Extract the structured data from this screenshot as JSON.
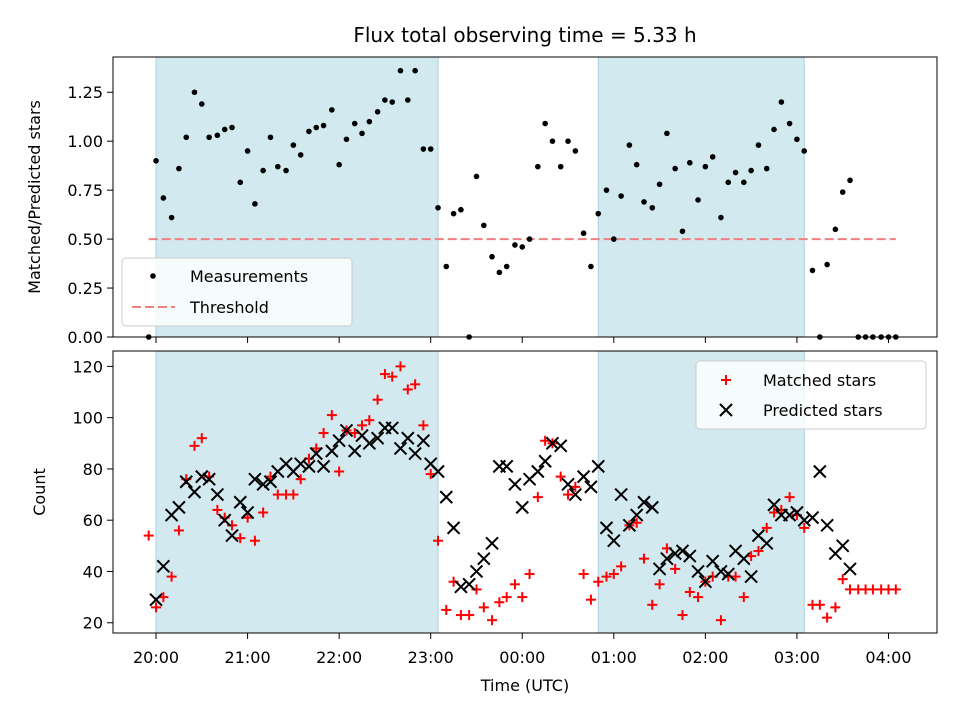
{
  "chart_data": [
    {
      "type": "scatter",
      "title": "Flux total observing time = 5.33 h",
      "xlabel": "",
      "ylabel": "Matched/Predicted stars",
      "ylim": [
        0,
        1.43
      ],
      "yticks": [
        "0.00",
        "0.25",
        "0.50",
        "0.75",
        "1.00",
        "1.25"
      ],
      "xlim_hours": [
        19.53,
        28.53
      ],
      "shaded_intervals_hours": [
        [
          20.0,
          23.08
        ],
        [
          24.83,
          27.08
        ]
      ],
      "shade_color": "#d2e9f0",
      "threshold": {
        "name": "Threshold",
        "value": 0.5,
        "x_range_hours": [
          19.92,
          28.08
        ],
        "color": "#f08080"
      },
      "series": [
        {
          "name": "Measurements",
          "color": "#000000",
          "x": [
            19.92,
            20.0,
            20.08,
            20.17,
            20.25,
            20.33,
            20.42,
            20.5,
            20.58,
            20.67,
            20.75,
            20.83,
            20.92,
            21.0,
            21.08,
            21.17,
            21.25,
            21.33,
            21.42,
            21.5,
            21.58,
            21.67,
            21.75,
            21.83,
            21.92,
            22.0,
            22.08,
            22.17,
            22.25,
            22.33,
            22.42,
            22.5,
            22.58,
            22.67,
            22.75,
            22.83,
            22.92,
            23.0,
            23.08,
            23.17,
            23.25,
            23.33,
            23.42,
            23.5,
            23.58,
            23.67,
            23.75,
            23.83,
            23.92,
            24.0,
            24.08,
            24.17,
            24.25,
            24.33,
            24.42,
            24.5,
            24.58,
            24.67,
            24.75,
            24.83,
            24.92,
            25.0,
            25.08,
            25.17,
            25.25,
            25.33,
            25.42,
            25.5,
            25.58,
            25.67,
            25.75,
            25.83,
            25.92,
            26.0,
            26.08,
            26.17,
            26.25,
            26.33,
            26.42,
            26.5,
            26.58,
            26.67,
            26.75,
            26.83,
            26.92,
            27.0,
            27.08,
            27.17,
            27.25,
            27.33,
            27.42,
            27.5,
            27.58,
            27.67,
            27.75,
            27.83,
            27.92,
            28.0,
            28.08
          ],
          "y": [
            0.0,
            0.9,
            0.71,
            0.61,
            0.86,
            1.02,
            1.25,
            1.19,
            1.02,
            1.03,
            1.06,
            1.07,
            0.79,
            0.95,
            0.68,
            0.85,
            1.02,
            0.87,
            0.85,
            0.98,
            0.93,
            1.05,
            1.07,
            1.08,
            1.16,
            0.88,
            1.01,
            1.09,
            1.04,
            1.1,
            1.15,
            1.21,
            1.2,
            1.36,
            1.21,
            1.36,
            0.96,
            0.96,
            0.66,
            0.36,
            0.63,
            0.65,
            0.0,
            0.82,
            0.57,
            0.41,
            0.33,
            0.36,
            0.47,
            0.46,
            0.5,
            0.87,
            1.09,
            1.0,
            0.87,
            1.0,
            0.95,
            0.53,
            0.36,
            0.63,
            0.75,
            0.5,
            0.72,
            0.98,
            0.88,
            0.69,
            0.66,
            0.78,
            1.04,
            0.86,
            0.54,
            0.89,
            0.7,
            0.87,
            0.92,
            0.61,
            0.79,
            0.84,
            0.79,
            0.85,
            0.98,
            0.86,
            1.06,
            1.2,
            1.09,
            1.01,
            0.95,
            0.34,
            0.0,
            0.37,
            0.55,
            0.74,
            0.8,
            0.0,
            0.0,
            0.0,
            0.0,
            0.0,
            0.0
          ]
        }
      ],
      "legend": {
        "position": "lower-left",
        "entries": [
          "Measurements",
          "Threshold"
        ]
      }
    },
    {
      "type": "scatter",
      "title": "",
      "xlabel": "Time (UTC)",
      "ylabel": "Count",
      "ylim": [
        16,
        126
      ],
      "yticks": [
        "20",
        "40",
        "60",
        "80",
        "100",
        "120"
      ],
      "xticks": [
        "20:00",
        "21:00",
        "22:00",
        "23:00",
        "00:00",
        "01:00",
        "02:00",
        "03:00",
        "04:00"
      ],
      "xtick_hours": [
        20,
        21,
        22,
        23,
        24,
        25,
        26,
        27,
        28
      ],
      "xlim_hours": [
        19.53,
        28.53
      ],
      "shaded_intervals_hours": [
        [
          20.0,
          23.08
        ],
        [
          24.83,
          27.08
        ]
      ],
      "series": [
        {
          "name": "Matched stars",
          "color": "#ff0000",
          "marker": "+",
          "x": [
            19.92,
            20.0,
            20.08,
            20.17,
            20.25,
            20.33,
            20.42,
            20.5,
            20.58,
            20.67,
            20.75,
            20.83,
            20.92,
            21.0,
            21.08,
            21.17,
            21.25,
            21.33,
            21.42,
            21.5,
            21.58,
            21.67,
            21.75,
            21.83,
            21.92,
            22.0,
            22.08,
            22.17,
            22.25,
            22.33,
            22.42,
            22.5,
            22.58,
            22.67,
            22.75,
            22.83,
            22.92,
            23.0,
            23.08,
            23.17,
            23.25,
            23.33,
            23.42,
            23.5,
            23.58,
            23.67,
            23.75,
            23.83,
            23.92,
            24.0,
            24.08,
            24.17,
            24.25,
            24.33,
            24.42,
            24.5,
            24.58,
            24.67,
            24.75,
            24.83,
            24.92,
            25.0,
            25.08,
            25.17,
            25.25,
            25.33,
            25.42,
            25.5,
            25.58,
            25.67,
            25.75,
            25.83,
            25.92,
            26.0,
            26.08,
            26.17,
            26.25,
            26.33,
            26.42,
            26.5,
            26.58,
            26.67,
            26.75,
            26.83,
            26.92,
            27.0,
            27.08,
            27.17,
            27.25,
            27.33,
            27.42,
            27.5,
            27.58,
            27.67,
            27.75,
            27.83,
            27.92,
            28.0,
            28.08
          ],
          "y": [
            54,
            26,
            30,
            38,
            56,
            76,
            89,
            92,
            77,
            64,
            61,
            58,
            53,
            61,
            52,
            63,
            77,
            70,
            70,
            70,
            76,
            84,
            88,
            94,
            101,
            79,
            95,
            94,
            97,
            99,
            107,
            117,
            116,
            120,
            111,
            113,
            97,
            78,
            52,
            25,
            36,
            23,
            23,
            33,
            26,
            21,
            28,
            30,
            35,
            30,
            39,
            69,
            91,
            90,
            77,
            70,
            73,
            39,
            29,
            36,
            38,
            39,
            42,
            58,
            59,
            45,
            27,
            35,
            49,
            41,
            23,
            32,
            30,
            36,
            38,
            21,
            38,
            38,
            30,
            46,
            48,
            57,
            63,
            64,
            69,
            62,
            57,
            27,
            27,
            22,
            26,
            37,
            33,
            33,
            33,
            33,
            33,
            33,
            33
          ]
        },
        {
          "name": "Predicted stars",
          "color": "#000000",
          "marker": "x",
          "x": [
            20.0,
            20.08,
            20.17,
            20.25,
            20.33,
            20.42,
            20.5,
            20.58,
            20.67,
            20.75,
            20.83,
            20.92,
            21.0,
            21.08,
            21.17,
            21.25,
            21.33,
            21.42,
            21.5,
            21.58,
            21.67,
            21.75,
            21.83,
            21.92,
            22.0,
            22.08,
            22.17,
            22.25,
            22.33,
            22.42,
            22.5,
            22.58,
            22.67,
            22.75,
            22.83,
            22.92,
            23.0,
            23.08,
            23.17,
            23.25,
            23.33,
            23.42,
            23.5,
            23.58,
            23.67,
            23.75,
            23.83,
            23.92,
            24.0,
            24.08,
            24.17,
            24.25,
            24.33,
            24.42,
            24.5,
            24.58,
            24.67,
            24.75,
            24.83,
            24.92,
            25.0,
            25.08,
            25.17,
            25.25,
            25.33,
            25.42,
            25.5,
            25.58,
            25.67,
            25.75,
            25.83,
            25.92,
            26.0,
            26.08,
            26.17,
            26.25,
            26.33,
            26.42,
            26.5,
            26.58,
            26.67,
            26.75,
            26.83,
            26.92,
            27.0,
            27.08,
            27.17,
            27.25,
            27.33,
            27.42,
            27.5,
            27.58
          ],
          "y": [
            29,
            42,
            62,
            65,
            75,
            71,
            77,
            76,
            70,
            60,
            54,
            67,
            63,
            76,
            74,
            75,
            79,
            82,
            79,
            82,
            81,
            86,
            81,
            87,
            91,
            95,
            87,
            93,
            90,
            92,
            96,
            96,
            88,
            92,
            86,
            91,
            82,
            79,
            69,
            57,
            34,
            35,
            40,
            45,
            51,
            81,
            81,
            74,
            65,
            76,
            79,
            83,
            90,
            89,
            74,
            70,
            77,
            73,
            81,
            57,
            52,
            70,
            58,
            62,
            67,
            65,
            41,
            45,
            47,
            48,
            46,
            40,
            36,
            44,
            40,
            39,
            48,
            45,
            38,
            54,
            51,
            66,
            62,
            62,
            63,
            60,
            61,
            79,
            58,
            47,
            50,
            41
          ]
        }
      ],
      "legend": {
        "position": "upper-right",
        "entries": [
          "Matched stars",
          "Predicted stars"
        ]
      }
    }
  ]
}
